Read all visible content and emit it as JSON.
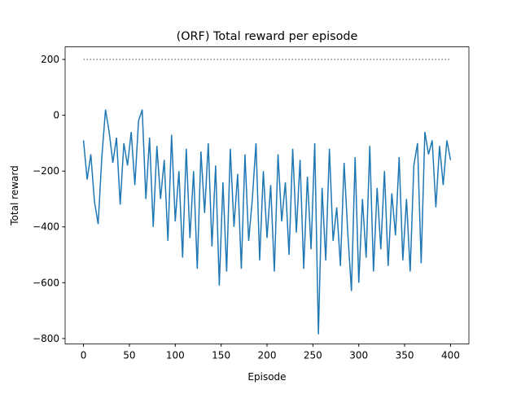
{
  "chart_data": {
    "type": "line",
    "title": "(ORF) Total reward per episode",
    "xlabel": "Episode",
    "ylabel": "Total reward",
    "color": "#1f77b4",
    "x": [
      0,
      4,
      8,
      12,
      16,
      20,
      24,
      28,
      32,
      36,
      40,
      44,
      48,
      52,
      56,
      60,
      64,
      68,
      72,
      76,
      80,
      84,
      88,
      92,
      96,
      100,
      104,
      108,
      112,
      116,
      120,
      124,
      128,
      132,
      136,
      140,
      144,
      148,
      152,
      156,
      160,
      164,
      168,
      172,
      176,
      180,
      184,
      188,
      192,
      196,
      200,
      204,
      208,
      212,
      216,
      220,
      224,
      228,
      232,
      236,
      240,
      244,
      248,
      252,
      256,
      260,
      264,
      268,
      272,
      276,
      280,
      284,
      288,
      292,
      296,
      300,
      304,
      308,
      312,
      316,
      320,
      324,
      328,
      332,
      336,
      340,
      344,
      348,
      352,
      356,
      360,
      364,
      368,
      372,
      376,
      380,
      384,
      388,
      392,
      396,
      400
    ],
    "values": [
      -90,
      -230,
      -140,
      -310,
      -390,
      -150,
      20,
      -60,
      -170,
      -80,
      -320,
      -100,
      -180,
      -60,
      -250,
      -20,
      20,
      -300,
      -80,
      -400,
      -110,
      -300,
      -160,
      -450,
      -70,
      -380,
      -200,
      -510,
      -120,
      -440,
      -200,
      -550,
      -130,
      -350,
      -100,
      -470,
      -180,
      -610,
      -240,
      -560,
      -120,
      -400,
      -210,
      -550,
      -140,
      -450,
      -300,
      -100,
      -520,
      -200,
      -440,
      -250,
      -560,
      -140,
      -380,
      -240,
      -500,
      -120,
      -420,
      -160,
      -550,
      -220,
      -480,
      -100,
      -785,
      -260,
      -520,
      -120,
      -450,
      -330,
      -540,
      -170,
      -420,
      -630,
      -150,
      -600,
      -300,
      -510,
      -110,
      -560,
      -260,
      -480,
      -200,
      -540,
      -280,
      -430,
      -150,
      -520,
      -300,
      -560,
      -180,
      -100,
      -530,
      -60,
      -140,
      -90,
      -330,
      -110,
      -250,
      -90,
      -160
    ],
    "hline": {
      "value": 200,
      "x0": 0,
      "x1": 400,
      "color": "#808080"
    },
    "xlim": [
      -20,
      420
    ],
    "ylim": [
      -819,
      245
    ],
    "xticks": [
      0,
      50,
      100,
      150,
      200,
      250,
      300,
      350,
      400
    ],
    "yticks": [
      {
        "value": -800,
        "label": "−800"
      },
      {
        "value": -600,
        "label": "−600"
      },
      {
        "value": -400,
        "label": "−400"
      },
      {
        "value": -200,
        "label": "−200"
      },
      0,
      200
    ]
  }
}
